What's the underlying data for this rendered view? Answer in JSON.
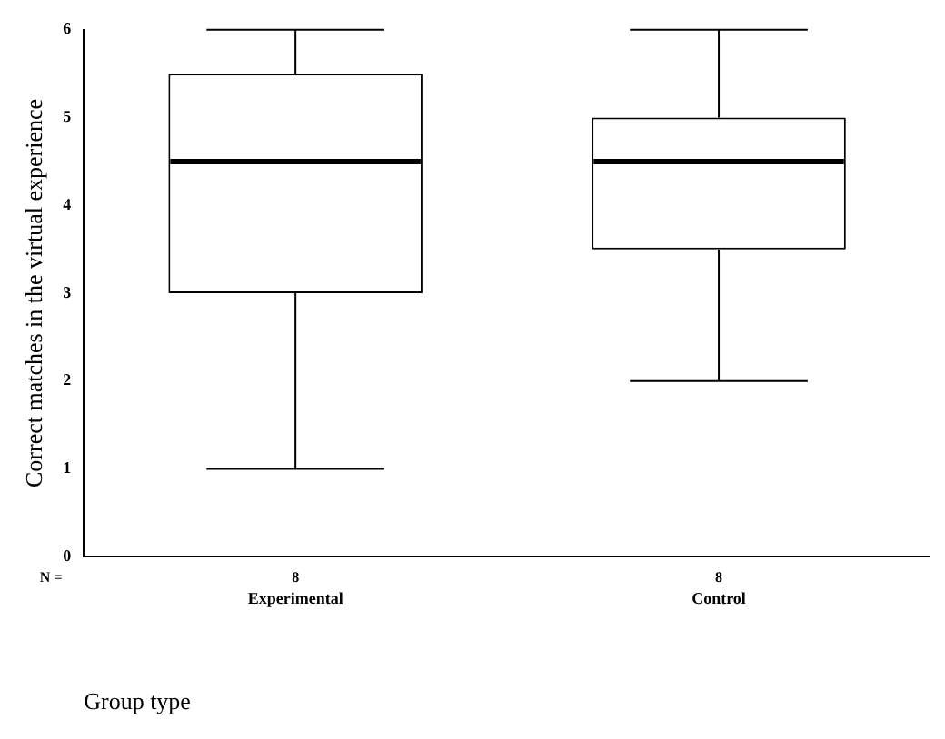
{
  "chart_data": {
    "type": "box",
    "xlabel": "Group type",
    "ylabel": "Correct matches in the virtual experience",
    "categories": [
      "Experimental",
      "Control"
    ],
    "boxes": [
      {
        "low": 1,
        "q1": 3,
        "median": 4.5,
        "q3": 5.5,
        "high": 6
      },
      {
        "low": 2,
        "q1": 3.5,
        "median": 4.5,
        "q3": 5,
        "high": 6
      }
    ],
    "ylim": [
      0,
      6
    ],
    "yticks": [
      0,
      1,
      2,
      3,
      4,
      5,
      6
    ],
    "grid": false,
    "legend": false,
    "annotations": [
      "N =",
      "8",
      "8"
    ]
  }
}
